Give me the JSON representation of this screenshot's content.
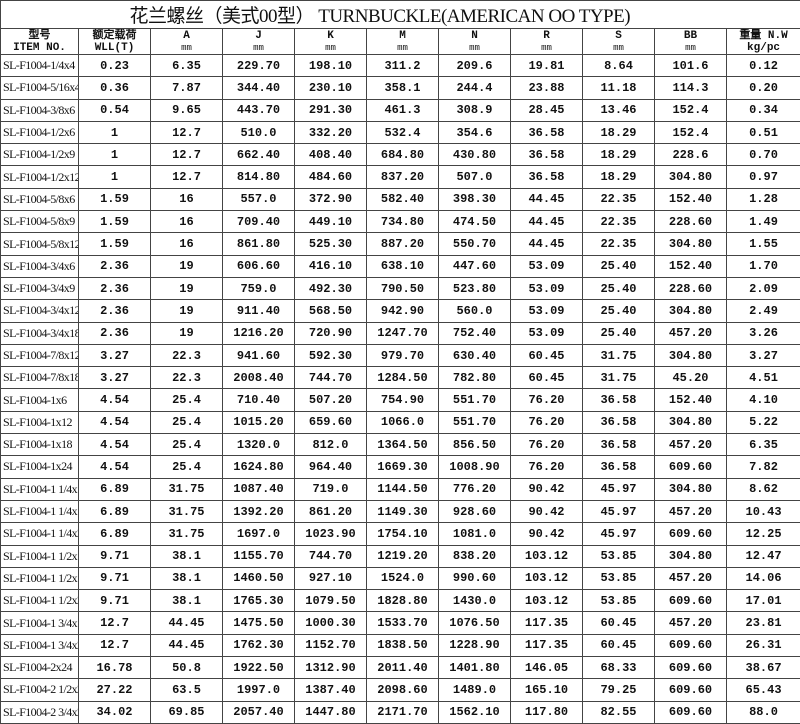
{
  "title": "花兰螺丝（美式00型） TURNBUCKLE(AMERICAN OO TYPE)",
  "headers": [
    {
      "top": "型号",
      "bottom": "ITEM NO."
    },
    {
      "top": "额定载荷",
      "bottom": "WLL(T)"
    },
    {
      "top": "A",
      "bottom": "mm"
    },
    {
      "top": "J",
      "bottom": "mm"
    },
    {
      "top": "K",
      "bottom": "mm"
    },
    {
      "top": "M",
      "bottom": "mm"
    },
    {
      "top": "N",
      "bottom": "mm"
    },
    {
      "top": "R",
      "bottom": "mm"
    },
    {
      "top": "S",
      "bottom": "mm"
    },
    {
      "top": "BB",
      "bottom": "mm"
    },
    {
      "top": "重量 N.W",
      "bottom": "kg/pc"
    }
  ],
  "rows": [
    [
      "SL-F1004-1/4x4",
      "0.23",
      "6.35",
      "229.70",
      "198.10",
      "311.2",
      "209.6",
      "19.81",
      "8.64",
      "101.6",
      "0.12"
    ],
    [
      "SL-F1004-5/16x4",
      "0.36",
      "7.87",
      "344.40",
      "230.10",
      "358.1",
      "244.4",
      "23.88",
      "11.18",
      "114.3",
      "0.20"
    ],
    [
      "SL-F1004-3/8x6",
      "0.54",
      "9.65",
      "443.70",
      "291.30",
      "461.3",
      "308.9",
      "28.45",
      "13.46",
      "152.4",
      "0.34"
    ],
    [
      "SL-F1004-1/2x6",
      "1",
      "12.7",
      "510.0",
      "332.20",
      "532.4",
      "354.6",
      "36.58",
      "18.29",
      "152.4",
      "0.51"
    ],
    [
      "SL-F1004-1/2x9",
      "1",
      "12.7",
      "662.40",
      "408.40",
      "684.80",
      "430.80",
      "36.58",
      "18.29",
      "228.6",
      "0.70"
    ],
    [
      "SL-F1004-1/2x12",
      "1",
      "12.7",
      "814.80",
      "484.60",
      "837.20",
      "507.0",
      "36.58",
      "18.29",
      "304.80",
      "0.97"
    ],
    [
      "SL-F1004-5/8x6",
      "1.59",
      "16",
      "557.0",
      "372.90",
      "582.40",
      "398.30",
      "44.45",
      "22.35",
      "152.40",
      "1.28"
    ],
    [
      "SL-F1004-5/8x9",
      "1.59",
      "16",
      "709.40",
      "449.10",
      "734.80",
      "474.50",
      "44.45",
      "22.35",
      "228.60",
      "1.49"
    ],
    [
      "SL-F1004-5/8x12",
      "1.59",
      "16",
      "861.80",
      "525.30",
      "887.20",
      "550.70",
      "44.45",
      "22.35",
      "304.80",
      "1.55"
    ],
    [
      "SL-F1004-3/4x6",
      "2.36",
      "19",
      "606.60",
      "416.10",
      "638.10",
      "447.60",
      "53.09",
      "25.40",
      "152.40",
      "1.70"
    ],
    [
      "SL-F1004-3/4x9",
      "2.36",
      "19",
      "759.0",
      "492.30",
      "790.50",
      "523.80",
      "53.09",
      "25.40",
      "228.60",
      "2.09"
    ],
    [
      "SL-F1004-3/4x12",
      "2.36",
      "19",
      "911.40",
      "568.50",
      "942.90",
      "560.0",
      "53.09",
      "25.40",
      "304.80",
      "2.49"
    ],
    [
      "SL-F1004-3/4x18",
      "2.36",
      "19",
      "1216.20",
      "720.90",
      "1247.70",
      "752.40",
      "53.09",
      "25.40",
      "457.20",
      "3.26"
    ],
    [
      "SL-F1004-7/8x12",
      "3.27",
      "22.3",
      "941.60",
      "592.30",
      "979.70",
      "630.40",
      "60.45",
      "31.75",
      "304.80",
      "3.27"
    ],
    [
      "SL-F1004-7/8x18",
      "3.27",
      "22.3",
      "2008.40",
      "744.70",
      "1284.50",
      "782.80",
      "60.45",
      "31.75",
      "45.20",
      "4.51"
    ],
    [
      "SL-F1004-1x6",
      "4.54",
      "25.4",
      "710.40",
      "507.20",
      "754.90",
      "551.70",
      "76.20",
      "36.58",
      "152.40",
      "4.10"
    ],
    [
      "SL-F1004-1x12",
      "4.54",
      "25.4",
      "1015.20",
      "659.60",
      "1066.0",
      "551.70",
      "76.20",
      "36.58",
      "304.80",
      "5.22"
    ],
    [
      "SL-F1004-1x18",
      "4.54",
      "25.4",
      "1320.0",
      "812.0",
      "1364.50",
      "856.50",
      "76.20",
      "36.58",
      "457.20",
      "6.35"
    ],
    [
      "SL-F1004-1x24",
      "4.54",
      "25.4",
      "1624.80",
      "964.40",
      "1669.30",
      "1008.90",
      "76.20",
      "36.58",
      "609.60",
      "7.82"
    ],
    [
      "SL-F1004-1 1/4x12",
      "6.89",
      "31.75",
      "1087.40",
      "719.0",
      "1144.50",
      "776.20",
      "90.42",
      "45.97",
      "304.80",
      "8.62"
    ],
    [
      "SL-F1004-1 1/4x18",
      "6.89",
      "31.75",
      "1392.20",
      "861.20",
      "1149.30",
      "928.60",
      "90.42",
      "45.97",
      "457.20",
      "10.43"
    ],
    [
      "SL-F1004-1 1/4x24",
      "6.89",
      "31.75",
      "1697.0",
      "1023.90",
      "1754.10",
      "1081.0",
      "90.42",
      "45.97",
      "609.60",
      "12.25"
    ],
    [
      "SL-F1004-1 1/2x12",
      "9.71",
      "38.1",
      "1155.70",
      "744.70",
      "1219.20",
      "838.20",
      "103.12",
      "53.85",
      "304.80",
      "12.47"
    ],
    [
      "SL-F1004-1 1/2x18",
      "9.71",
      "38.1",
      "1460.50",
      "927.10",
      "1524.0",
      "990.60",
      "103.12",
      "53.85",
      "457.20",
      "14.06"
    ],
    [
      "SL-F1004-1 1/2x24",
      "9.71",
      "38.1",
      "1765.30",
      "1079.50",
      "1828.80",
      "1430.0",
      "103.12",
      "53.85",
      "609.60",
      "17.01"
    ],
    [
      "SL-F1004-1 3/4x18",
      "12.7",
      "44.45",
      "1475.50",
      "1000.30",
      "1533.70",
      "1076.50",
      "117.35",
      "60.45",
      "457.20",
      "23.81"
    ],
    [
      "SL-F1004-1 3/4x24",
      "12.7",
      "44.45",
      "1762.30",
      "1152.70",
      "1838.50",
      "1228.90",
      "117.35",
      "60.45",
      "609.60",
      "26.31"
    ],
    [
      "SL-F1004-2x24",
      "16.78",
      "50.8",
      "1922.50",
      "1312.90",
      "2011.40",
      "1401.80",
      "146.05",
      "68.33",
      "609.60",
      "38.67"
    ],
    [
      "SL-F1004-2 1/2x24",
      "27.22",
      "63.5",
      "1997.0",
      "1387.40",
      "2098.60",
      "1489.0",
      "165.10",
      "79.25",
      "609.60",
      "65.43"
    ],
    [
      "SL-F1004-2 3/4x24",
      "34.02",
      "69.85",
      "2057.40",
      "1447.80",
      "2171.70",
      "1562.10",
      "117.80",
      "82.55",
      "609.60",
      "88.0"
    ]
  ]
}
